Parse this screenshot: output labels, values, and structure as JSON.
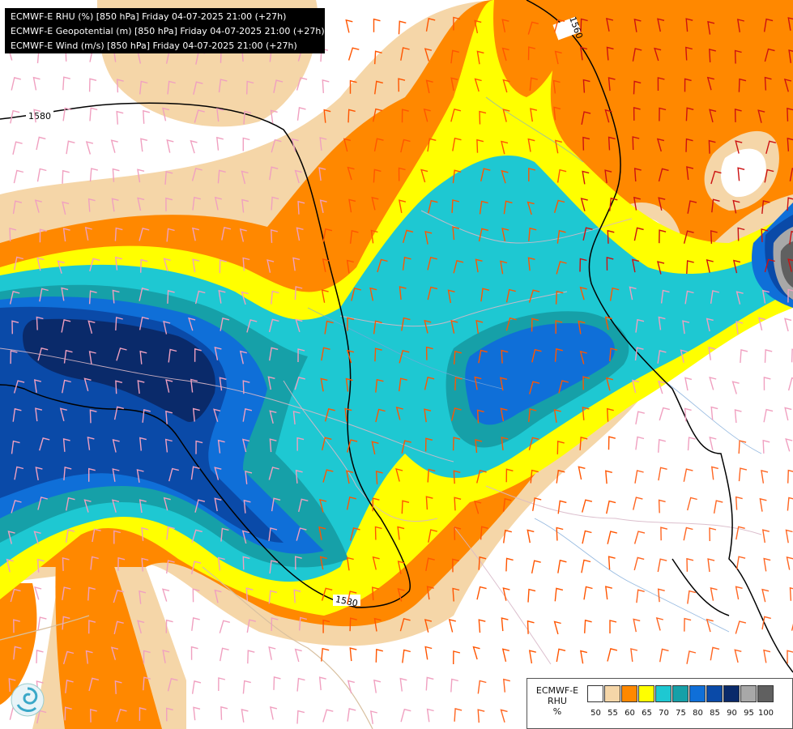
{
  "title_lines": [
    "ECMWF-E RHU (%) [850 hPa] Friday 04-07-2025 21:00 (+27h)",
    "ECMWF-E Geopotential (m) [850 hPa] Friday 04-07-2025 21:00 (+27h)",
    "ECMWF-E Wind (m/s) [850 hPa] Friday 04-07-2025 21:00 (+27h)"
  ],
  "contour_labels": [
    "1580",
    "1560",
    "1580"
  ],
  "legend": {
    "label_lines": [
      "ECMWF-E",
      "RHU",
      "%"
    ],
    "ticks": [
      "50",
      "55",
      "60",
      "65",
      "70",
      "75",
      "80",
      "85",
      "90",
      "95",
      "100"
    ],
    "colors": [
      "#ffffff",
      "#f5d6a8",
      "#ff8800",
      "#ffff00",
      "#1ec8d2",
      "#16a0a8",
      "#0f6fd8",
      "#0a4aa8",
      "#0a2a6a",
      "#a8a8a8",
      "#606060"
    ]
  },
  "logo_icon": "swirl-logo-icon"
}
